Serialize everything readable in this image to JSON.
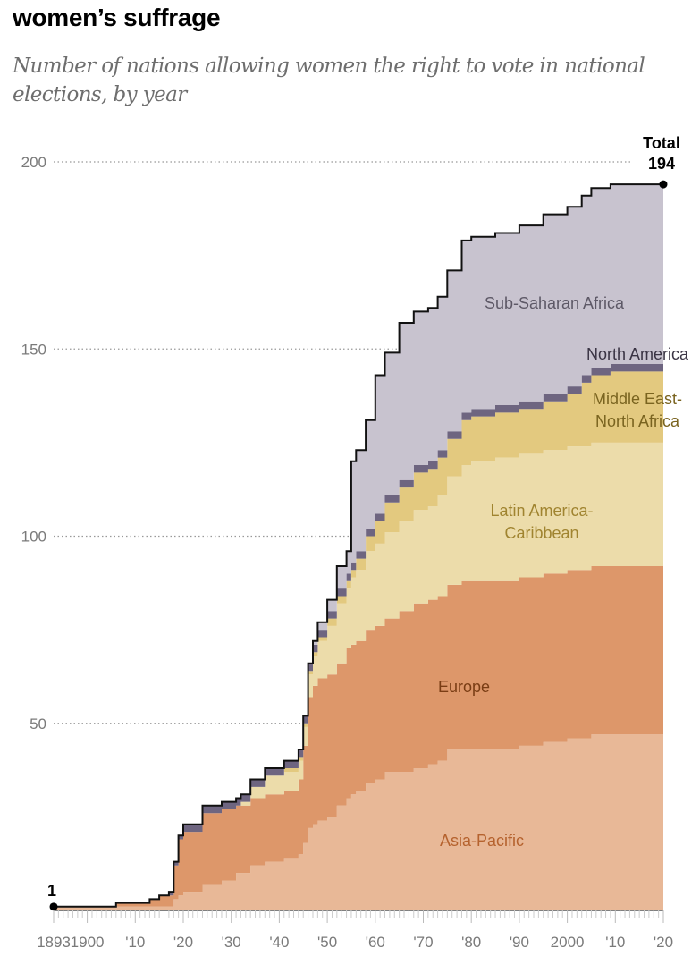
{
  "title": "women’s suffrage",
  "subtitle": "Number of nations allowing women the right to vote in national elections, by year",
  "chart_data": {
    "type": "area",
    "stacked": true,
    "step": true,
    "title": "women’s suffrage",
    "subtitle": "Number of nations allowing women the right to vote in national elections, by year",
    "xlabel": "",
    "ylabel": "",
    "xlim": [
      1893,
      2020
    ],
    "ylim": [
      0,
      200
    ],
    "grid": "dotted horizontal at y ticks",
    "y_ticks": [
      50,
      100,
      150,
      200
    ],
    "x_tick_labels": [
      {
        "year": 1893,
        "label": "1893"
      },
      {
        "year": 1900,
        "label": "1900"
      },
      {
        "year": 1910,
        "label": "'10"
      },
      {
        "year": 1920,
        "label": "'20"
      },
      {
        "year": 1930,
        "label": "'30"
      },
      {
        "year": 1940,
        "label": "'40"
      },
      {
        "year": 1950,
        "label": "'50"
      },
      {
        "year": 1960,
        "label": "'60"
      },
      {
        "year": 1970,
        "label": "'70"
      },
      {
        "year": 1980,
        "label": "'80"
      },
      {
        "year": 1990,
        "label": "'90"
      },
      {
        "year": 2000,
        "label": "2000"
      },
      {
        "year": 2010,
        "label": "'10"
      },
      {
        "year": 2020,
        "label": "'20"
      }
    ],
    "years": [
      1893,
      1906,
      1913,
      1915,
      1917,
      1918,
      1919,
      1920,
      1924,
      1928,
      1931,
      1932,
      1934,
      1937,
      1941,
      1944,
      1945,
      1946,
      1947,
      1948,
      1950,
      1952,
      1954,
      1955,
      1956,
      1958,
      1960,
      1962,
      1965,
      1968,
      1971,
      1973,
      1975,
      1978,
      1980,
      1985,
      1990,
      1995,
      2000,
      2003,
      2005,
      2009,
      2020
    ],
    "series": [
      {
        "name": "Asia-Pacific",
        "color": "#e8b897",
        "label_color": "#b5622e",
        "values": [
          1,
          1,
          1,
          1,
          1,
          3,
          4,
          5,
          7,
          8,
          10,
          10,
          12,
          13,
          14,
          15,
          18,
          22,
          23,
          24,
          25,
          28,
          30,
          31,
          32,
          34,
          35,
          37,
          37,
          38,
          39,
          40,
          43,
          43,
          43,
          43,
          44,
          45,
          46,
          46,
          47,
          47,
          47
        ]
      },
      {
        "name": "Europe",
        "color": "#dd976a",
        "label_color": "#7a3d14",
        "values": [
          0,
          1,
          2,
          3,
          3,
          9,
          15,
          16,
          19,
          19,
          18,
          18,
          18,
          18,
          18,
          20,
          26,
          35,
          37,
          38,
          38,
          38,
          40,
          40,
          40,
          41,
          41,
          41,
          43,
          44,
          44,
          44,
          44,
          45,
          45,
          45,
          45,
          45,
          45,
          45,
          45,
          45,
          45
        ]
      },
      {
        "name": "Latin America-Caribbean",
        "label_lines": [
          "Latin America-",
          "Caribbean"
        ],
        "color": "#ecdcaa",
        "label_color": "#a08430",
        "values": [
          0,
          0,
          0,
          0,
          0,
          0,
          0,
          0,
          0,
          0,
          0,
          1,
          3,
          5,
          5,
          5,
          5,
          6,
          8,
          10,
          13,
          16,
          16,
          18,
          19,
          21,
          22,
          23,
          24,
          25,
          25,
          27,
          29,
          31,
          32,
          33,
          33,
          33,
          33,
          33,
          33,
          33,
          33
        ]
      },
      {
        "name": "Middle East-North Africa",
        "label_lines": [
          "Middle East-",
          "North Africa"
        ],
        "color": "#e3c97f",
        "label_color": "#7a6420",
        "values": [
          0,
          0,
          0,
          0,
          0,
          0,
          0,
          0,
          0,
          0,
          0,
          0,
          0,
          0,
          1,
          1,
          1,
          1,
          1,
          1,
          2,
          2,
          2,
          2,
          3,
          4,
          6,
          8,
          9,
          10,
          10,
          10,
          10,
          12,
          12,
          12,
          12,
          13,
          14,
          17,
          18,
          19,
          19
        ]
      },
      {
        "name": "North America",
        "color": "#6e6580",
        "label_color": "#3a3444",
        "values": [
          0,
          0,
          0,
          0,
          1,
          1,
          1,
          2,
          2,
          2,
          2,
          2,
          2,
          2,
          2,
          2,
          2,
          2,
          2,
          2,
          2,
          2,
          2,
          2,
          2,
          2,
          2,
          2,
          2,
          2,
          2,
          2,
          2,
          2,
          2,
          2,
          2,
          2,
          2,
          2,
          2,
          2,
          2
        ]
      },
      {
        "name": "Sub-Saharan Africa",
        "color": "#c8c3cf",
        "label_color": "#5d5866",
        "values": [
          0,
          0,
          0,
          0,
          0,
          0,
          0,
          0,
          0,
          0,
          0,
          0,
          0,
          0,
          0,
          0,
          0,
          0,
          1,
          2,
          3,
          6,
          6,
          27,
          27,
          29,
          37,
          38,
          42,
          41,
          41,
          41,
          43,
          46,
          46,
          46,
          47,
          48,
          48,
          48,
          48,
          48,
          48
        ]
      }
    ],
    "annotations": {
      "start": {
        "year": 1893,
        "value": 1,
        "label": "1"
      },
      "end": {
        "year": 2020,
        "value": 194,
        "label_top": "Total",
        "label_value": "194"
      }
    }
  }
}
